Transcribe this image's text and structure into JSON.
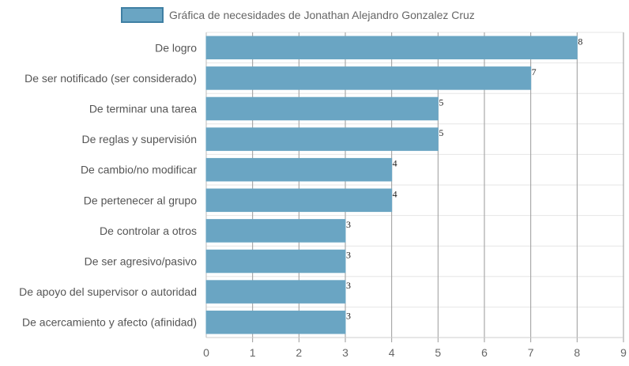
{
  "chart_data": {
    "type": "bar",
    "orientation": "horizontal",
    "categories": [
      "De logro",
      "De ser notificado (ser considerado)",
      "De terminar una tarea",
      "De reglas y supervisión",
      "De cambio/no modificar",
      "De pertenecer al grupo",
      "De controlar a otros",
      "De ser agresivo/pasivo",
      "De apoyo del supervisor o autoridad",
      "De acercamiento y afecto (afinidad)"
    ],
    "series": [
      {
        "name": "Gráfica de necesidades de Jonathan Alejandro Gonzalez Cruz",
        "values": [
          8,
          7,
          5,
          5,
          4,
          4,
          3,
          3,
          3,
          3
        ],
        "color": "#6aa5c3",
        "border_color": "#3f7fa3"
      }
    ],
    "x_ticks": [
      "0",
      "1",
      "2",
      "3",
      "4",
      "5",
      "6",
      "7",
      "8",
      "9"
    ],
    "xlim": [
      0,
      9
    ],
    "grid": true,
    "legend": "top-center",
    "data_labels": true
  }
}
